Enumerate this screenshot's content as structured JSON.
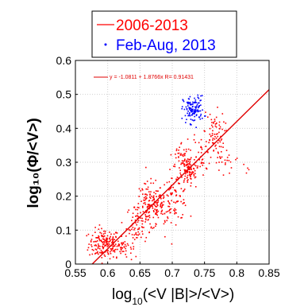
{
  "chart_data": {
    "type": "scatter",
    "xlabel_main": "log",
    "xlabel_sub": "10",
    "xlabel_rest": "(<V |B|>/<V>)",
    "ylabel": "log₁₀(Φ/<V>)",
    "xlim": [
      0.55,
      0.85
    ],
    "ylim": [
      0,
      0.6
    ],
    "xticks": [
      "0.55",
      "0.6",
      "0.65",
      "0.7",
      "0.75",
      "0.8",
      "0.85"
    ],
    "yticks": [
      "0",
      "0.1",
      "0.2",
      "0.3",
      "0.4",
      "0.5",
      "0.6"
    ],
    "legend": {
      "placement": "top",
      "entries": [
        {
          "label": "2006-2013",
          "color": "#ff0000",
          "marker": "line"
        },
        {
          "label": "Feb-Aug, 2013",
          "color": "#0000ff",
          "marker": "dot"
        }
      ]
    },
    "fit": {
      "text": "y = -1.0811 + 1.8766x   R= 0.91431",
      "intercept": -1.0811,
      "slope": 1.8766,
      "color": "#e00000"
    },
    "series": [
      {
        "name": "2006-2013",
        "color": "#ff0000",
        "clusters": [
          {
            "x": 0.595,
            "y": 0.06,
            "sx": 0.012,
            "sy": 0.022,
            "n": 170
          },
          {
            "x": 0.622,
            "y": 0.05,
            "sx": 0.008,
            "sy": 0.014,
            "n": 50
          },
          {
            "x": 0.645,
            "y": 0.115,
            "sx": 0.008,
            "sy": 0.03,
            "n": 60
          },
          {
            "x": 0.664,
            "y": 0.17,
            "sx": 0.011,
            "sy": 0.035,
            "n": 130
          },
          {
            "x": 0.685,
            "y": 0.165,
            "sx": 0.009,
            "sy": 0.028,
            "n": 60
          },
          {
            "x": 0.705,
            "y": 0.2,
            "sx": 0.01,
            "sy": 0.035,
            "n": 80
          },
          {
            "x": 0.725,
            "y": 0.275,
            "sx": 0.006,
            "sy": 0.02,
            "n": 90
          },
          {
            "x": 0.715,
            "y": 0.32,
            "sx": 0.009,
            "sy": 0.02,
            "n": 40
          },
          {
            "x": 0.745,
            "y": 0.33,
            "sx": 0.008,
            "sy": 0.035,
            "n": 50
          },
          {
            "x": 0.765,
            "y": 0.38,
            "sx": 0.008,
            "sy": 0.035,
            "n": 70
          },
          {
            "x": 0.78,
            "y": 0.3,
            "sx": 0.006,
            "sy": 0.025,
            "n": 20
          },
          {
            "x": 0.81,
            "y": 0.3,
            "sx": 0.006,
            "sy": 0.02,
            "n": 6
          }
        ]
      },
      {
        "name": "Feb-Aug, 2013",
        "color": "#0000ff",
        "clusters": [
          {
            "x": 0.733,
            "y": 0.455,
            "sx": 0.008,
            "sy": 0.02,
            "n": 130
          }
        ]
      }
    ]
  }
}
